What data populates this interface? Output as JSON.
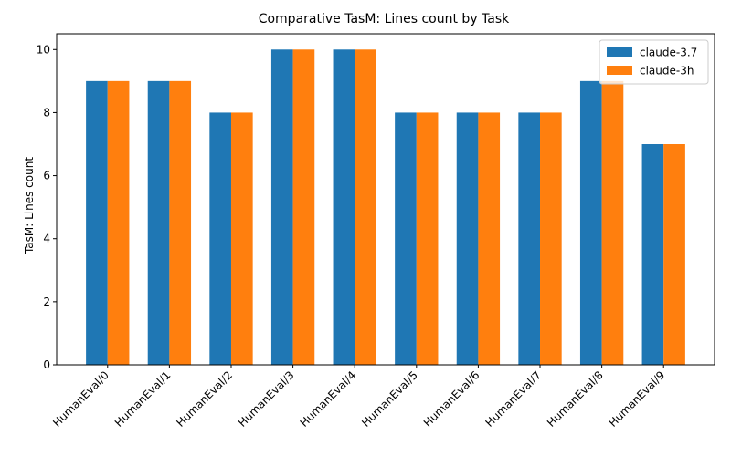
{
  "chart_data": {
    "type": "bar",
    "title": "Comparative TasM: Lines count by Task",
    "xlabel": "",
    "ylabel": "TasM: Lines count",
    "categories": [
      "HumanEval/0",
      "HumanEval/1",
      "HumanEval/2",
      "HumanEval/3",
      "HumanEval/4",
      "HumanEval/5",
      "HumanEval/6",
      "HumanEval/7",
      "HumanEval/8",
      "HumanEval/9"
    ],
    "series": [
      {
        "name": "claude-3.7",
        "color": "#1f77b4",
        "values": [
          9,
          9,
          8,
          10,
          10,
          8,
          8,
          8,
          9,
          7
        ]
      },
      {
        "name": "claude-3h",
        "color": "#ff7f0e",
        "values": [
          9,
          9,
          8,
          10,
          10,
          8,
          8,
          8,
          9,
          7
        ]
      }
    ],
    "ylim": [
      0,
      10.5
    ],
    "yticks": [
      0,
      2,
      4,
      6,
      8,
      10
    ],
    "grid": false,
    "legend": "top-right"
  }
}
